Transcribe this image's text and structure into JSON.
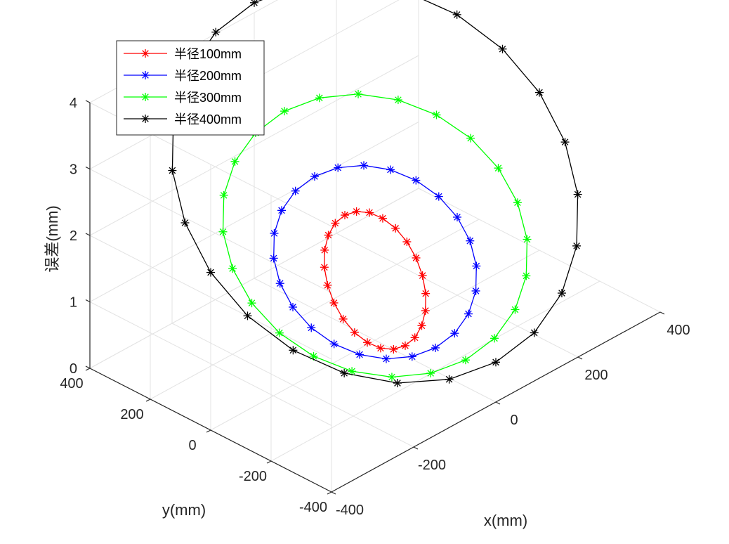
{
  "chart_data": {
    "type": "line3d",
    "title": "",
    "xlabel": "x(mm)",
    "ylabel": "y(mm)",
    "zlabel": "误差(mm)",
    "xlim": [
      -400,
      400
    ],
    "ylim": [
      -400,
      400
    ],
    "zlim": [
      0,
      4
    ],
    "x_ticks": [
      "-400",
      "-200",
      "0",
      "200",
      "400"
    ],
    "y_ticks": [
      "-400",
      "-200",
      "0",
      "200",
      "400"
    ],
    "z_ticks": [
      "0",
      "1",
      "2",
      "3",
      "4"
    ],
    "grid": true,
    "legend_position": "top-left",
    "series": [
      {
        "name": "半径100mm",
        "color": "#ff0000",
        "radius": 100,
        "z_min": 0.15,
        "z_max": 1.65,
        "points": 24
      },
      {
        "name": "半径200mm",
        "color": "#0000ff",
        "radius": 200,
        "z_min": 0.35,
        "z_max": 2.0,
        "points": 24
      },
      {
        "name": "半径300mm",
        "color": "#00ff00",
        "radius": 300,
        "z_min": 0.4,
        "z_max": 2.75,
        "points": 24
      },
      {
        "name": "半径400mm",
        "color": "#000000",
        "radius": 400,
        "z_min": 0.6,
        "z_max": 4.15,
        "points": 24
      }
    ]
  }
}
